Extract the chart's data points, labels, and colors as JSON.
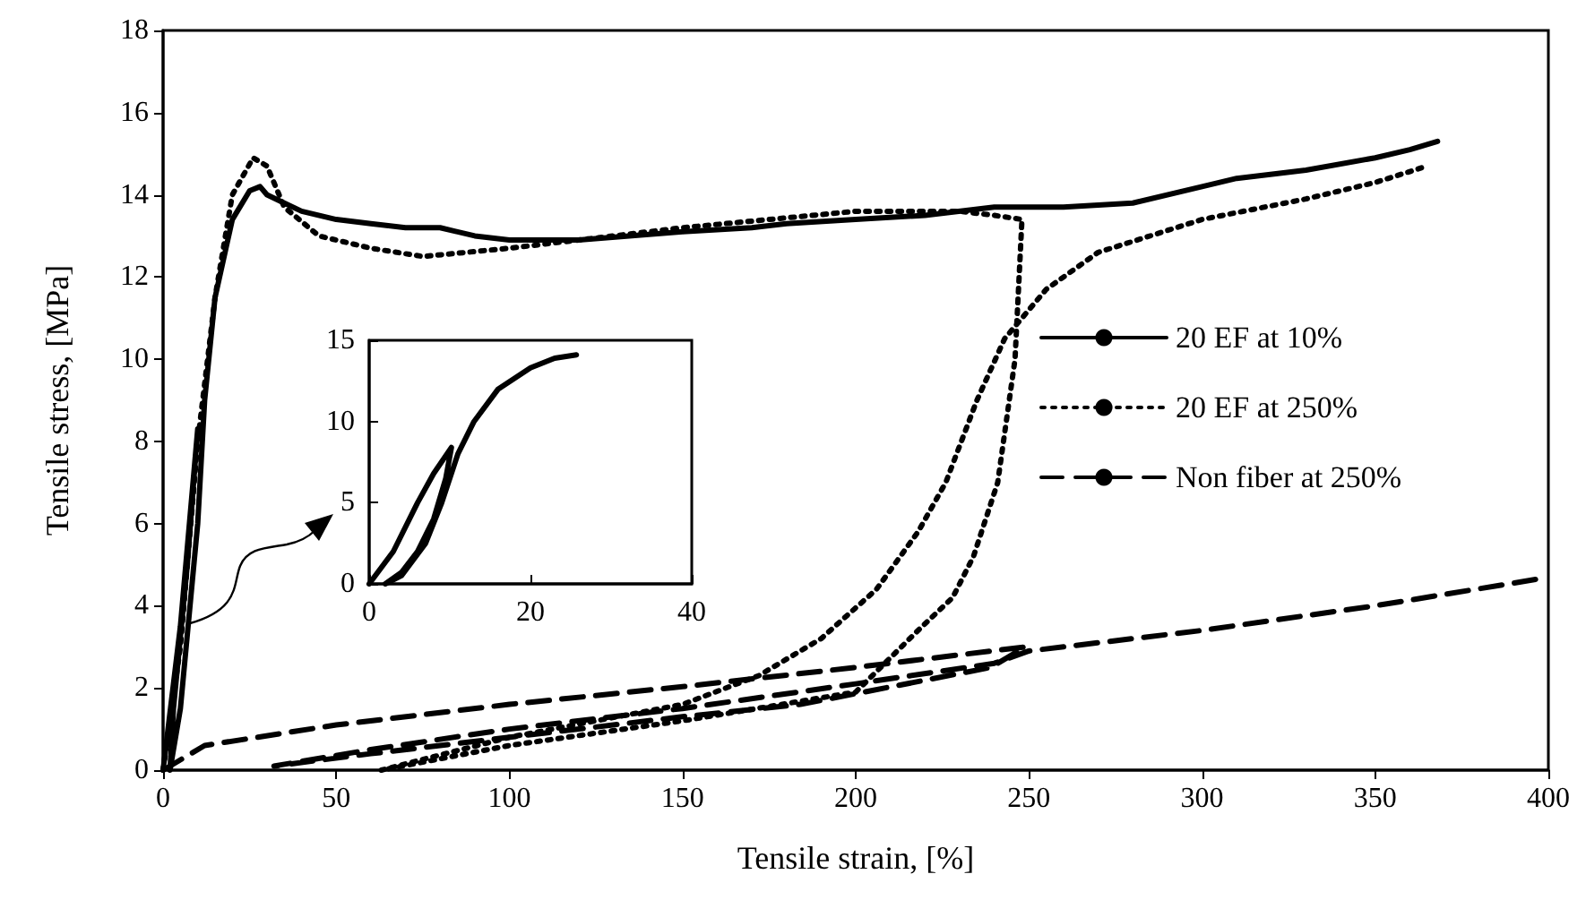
{
  "chart_data": [
    {
      "type": "line",
      "xlabel": "Tensile strain, [%]",
      "ylabel": "Tensile stress, [MPa]",
      "xlim": [
        0,
        400
      ],
      "ylim": [
        0,
        18
      ],
      "xticks": [
        0,
        50,
        100,
        150,
        200,
        250,
        300,
        350,
        400
      ],
      "yticks": [
        0,
        2,
        4,
        6,
        8,
        10,
        12,
        14,
        16,
        18
      ],
      "legend": "right",
      "marker": "none",
      "series": [
        {
          "name": "20 EF at 10%",
          "color": "#000000",
          "line_style": "solid",
          "x": [
            0,
            5,
            10,
            7,
            3,
            2,
            5,
            10,
            12,
            15,
            20,
            25,
            28,
            30,
            35,
            40,
            50,
            60,
            70,
            80,
            90,
            100,
            120,
            150,
            170,
            180,
            200,
            220,
            240,
            260,
            280,
            300,
            310,
            330,
            350,
            360,
            368
          ],
          "values": [
            0,
            3.5,
            8.3,
            5,
            1.5,
            0,
            1.5,
            6,
            9,
            11.5,
            13.4,
            14.1,
            14.2,
            14.0,
            13.8,
            13.6,
            13.4,
            13.3,
            13.2,
            13.2,
            13.0,
            12.9,
            12.9,
            13.1,
            13.2,
            13.3,
            13.4,
            13.5,
            13.7,
            13.7,
            13.8,
            14.2,
            14.4,
            14.6,
            14.9,
            15.1,
            15.3
          ]
        },
        {
          "name": "20 EF at 250%",
          "color": "#000000",
          "line_style": "dotted",
          "x": [
            0,
            5,
            10,
            15,
            20,
            26,
            30,
            35,
            45,
            60,
            75,
            100,
            150,
            200,
            230,
            240,
            248,
            246,
            241,
            234,
            228,
            218,
            200,
            150,
            100,
            63,
            100,
            150,
            172,
            190,
            206,
            218,
            226,
            235,
            243,
            255,
            270,
            300,
            330,
            350,
            365
          ],
          "values": [
            0,
            3,
            8,
            11.5,
            14,
            14.9,
            14.7,
            13.7,
            13,
            12.7,
            12.5,
            12.7,
            13.2,
            13.6,
            13.6,
            13.5,
            13.4,
            10,
            7,
            5.2,
            4.2,
            3.4,
            1.9,
            1.2,
            0.6,
            0,
            0.8,
            1.6,
            2.3,
            3.2,
            4.4,
            5.8,
            7,
            9,
            10.5,
            11.7,
            12.6,
            13.4,
            13.9,
            14.3,
            14.7
          ]
        },
        {
          "name": "Non fiber at 250%",
          "color": "#000000",
          "line_style": "dashed",
          "x": [
            0,
            12,
            50,
            100,
            152,
            200,
            249,
            239,
            184,
            150,
            100,
            60,
            32,
            60,
            100,
            150,
            200,
            240,
            250,
            300,
            350,
            397
          ],
          "values": [
            0,
            0.6,
            1.1,
            1.6,
            2.05,
            2.5,
            3.0,
            2.5,
            1.6,
            1.3,
            0.8,
            0.4,
            0.1,
            0.5,
            1.0,
            1.5,
            2.1,
            2.6,
            2.9,
            3.4,
            4.0,
            4.65
          ]
        }
      ]
    },
    {
      "type": "line",
      "xlim": [
        0,
        40
      ],
      "ylim": [
        0,
        15
      ],
      "xticks": [
        0,
        20,
        40
      ],
      "yticks": [
        0,
        5,
        10,
        15
      ],
      "marker": "none",
      "series": [
        {
          "color": "#000000",
          "line_style": "solid",
          "x": [
            0,
            3,
            6,
            8,
            10.2,
            9.5,
            8,
            6,
            4,
            2,
            4,
            7,
            9,
            11,
            13,
            16,
            20,
            23,
            25.7
          ],
          "values": [
            0,
            2,
            5,
            6.8,
            8.4,
            6.5,
            4,
            2,
            0.7,
            0,
            0.5,
            2.5,
            5,
            8,
            10,
            12,
            13.3,
            13.9,
            14.1
          ]
        }
      ]
    }
  ]
}
